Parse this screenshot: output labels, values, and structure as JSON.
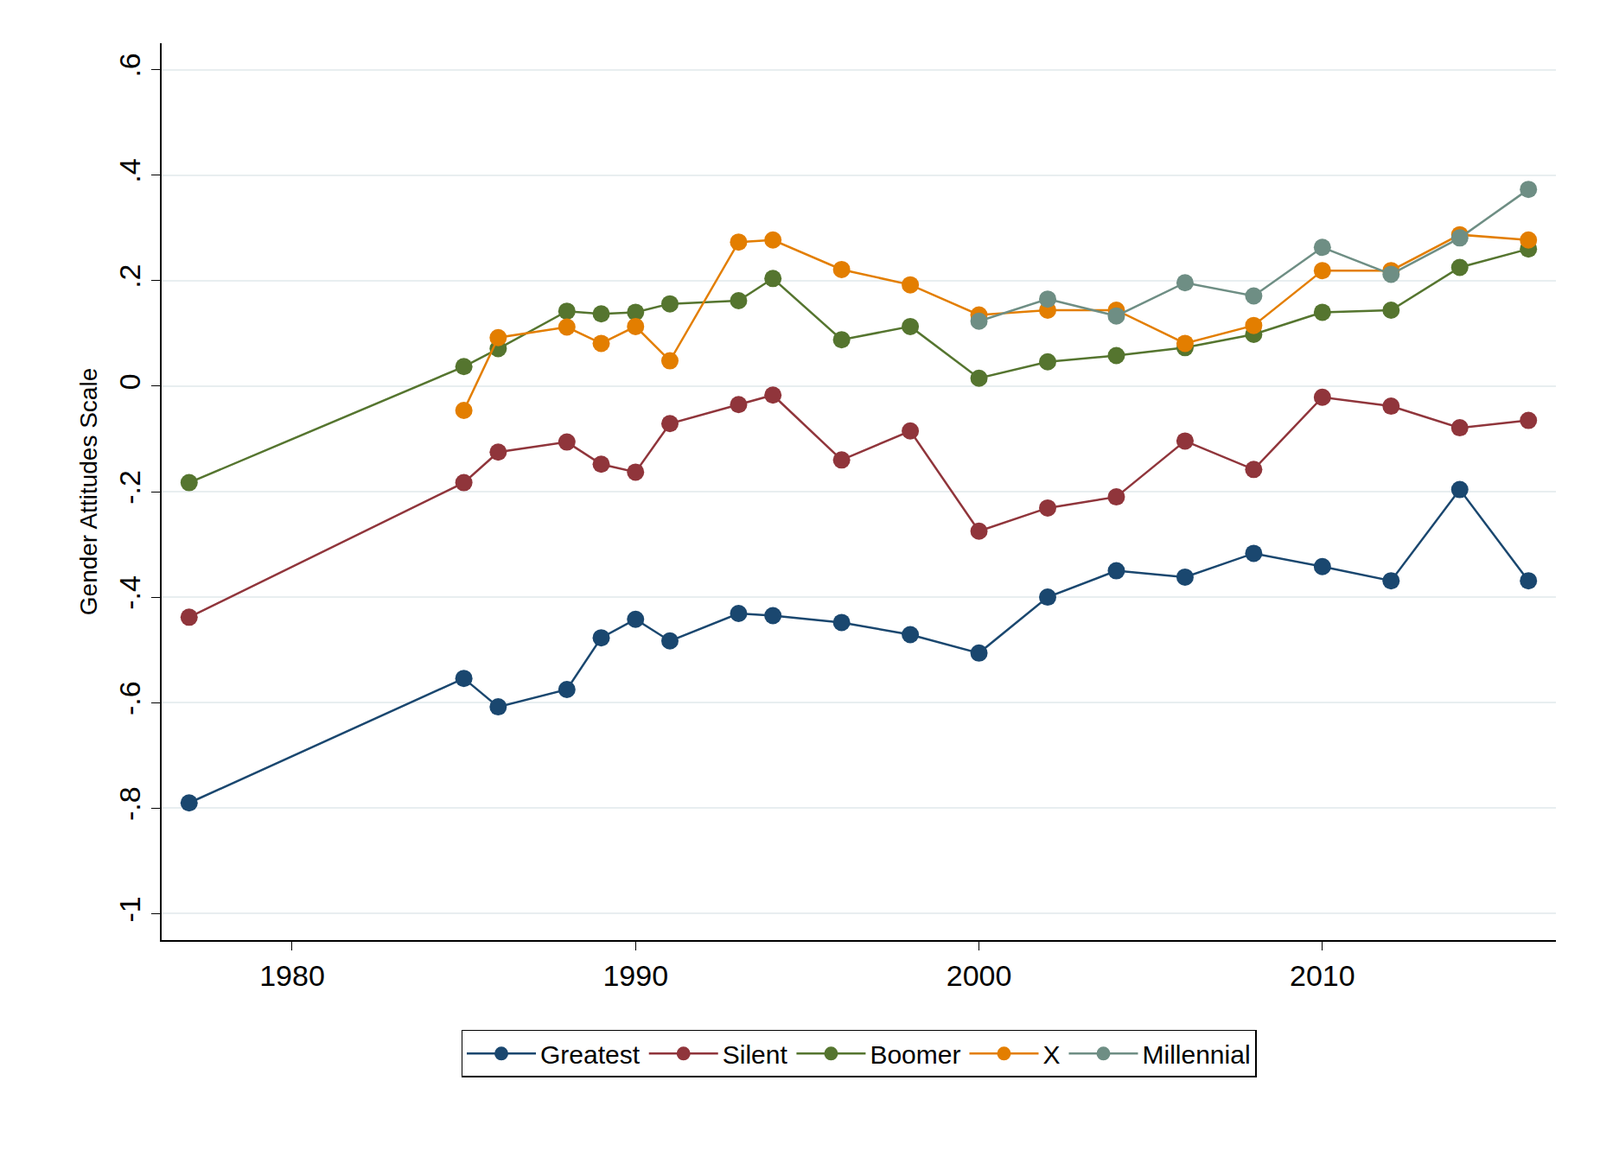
{
  "chart_data": {
    "type": "line",
    "y_label": "Gender Attitudes Scale",
    "x": [
      1977,
      1985,
      1986,
      1988,
      1989,
      1990,
      1991,
      1993,
      1994,
      1996,
      1998,
      2000,
      2002,
      2004,
      2006,
      2008,
      2010,
      2012,
      2014,
      2016
    ],
    "series": [
      {
        "name": "Greatest",
        "color": "#1a476f",
        "values": [
          -0.79,
          -0.554,
          -0.608,
          -0.575,
          -0.477,
          -0.442,
          -0.483,
          -0.431,
          -0.435,
          -0.448,
          -0.471,
          -0.506,
          -0.4,
          -0.35,
          -0.362,
          -0.317,
          -0.342,
          -0.369,
          -0.196,
          -0.369
        ]
      },
      {
        "name": "Silent",
        "color": "#90353b",
        "values": [
          -0.438,
          -0.183,
          -0.125,
          -0.106,
          -0.148,
          -0.163,
          -0.071,
          -0.035,
          -0.017,
          -0.14,
          -0.085,
          -0.275,
          -0.231,
          -0.21,
          -0.104,
          -0.158,
          -0.021,
          -0.038,
          -0.079,
          -0.065
        ]
      },
      {
        "name": "Boomer",
        "color": "#55752f",
        "values": [
          -0.183,
          0.037,
          0.071,
          0.142,
          0.137,
          0.14,
          0.156,
          0.162,
          0.204,
          0.088,
          0.113,
          0.015,
          0.046,
          0.058,
          0.073,
          0.098,
          0.14,
          0.144,
          0.225,
          0.26
        ]
      },
      {
        "name": "X",
        "color": "#e37e00",
        "values": [
          null,
          -0.046,
          0.092,
          0.112,
          0.081,
          0.113,
          0.048,
          0.273,
          0.277,
          0.221,
          0.192,
          0.135,
          0.144,
          0.144,
          0.081,
          0.115,
          0.219,
          0.219,
          0.287,
          0.277
        ]
      },
      {
        "name": "Millennial",
        "color": "#6e8e84",
        "values": [
          null,
          null,
          null,
          null,
          null,
          null,
          null,
          null,
          null,
          null,
          null,
          0.123,
          0.165,
          0.133,
          0.196,
          0.171,
          0.263,
          0.212,
          0.281,
          0.373
        ]
      }
    ],
    "xlim": [
      1976.2,
      2016.8
    ],
    "xticks": [
      1980,
      1990,
      2000,
      2010
    ],
    "ylim": [
      -1.05,
      0.65
    ],
    "yticks": [
      {
        "value": 0.6,
        "label": ".6"
      },
      {
        "value": 0.4,
        "label": ".4"
      },
      {
        "value": 0.2,
        "label": ".2"
      },
      0,
      {
        "value": -0.2,
        "label": "-.2"
      },
      {
        "value": -0.4,
        "label": "-.4"
      },
      {
        "value": -0.6,
        "label": "-.6"
      },
      {
        "value": -0.8,
        "label": "-.8"
      },
      -1
    ],
    "grid": true,
    "legend": "bottom",
    "marker": "circle",
    "line_style": "solid"
  }
}
